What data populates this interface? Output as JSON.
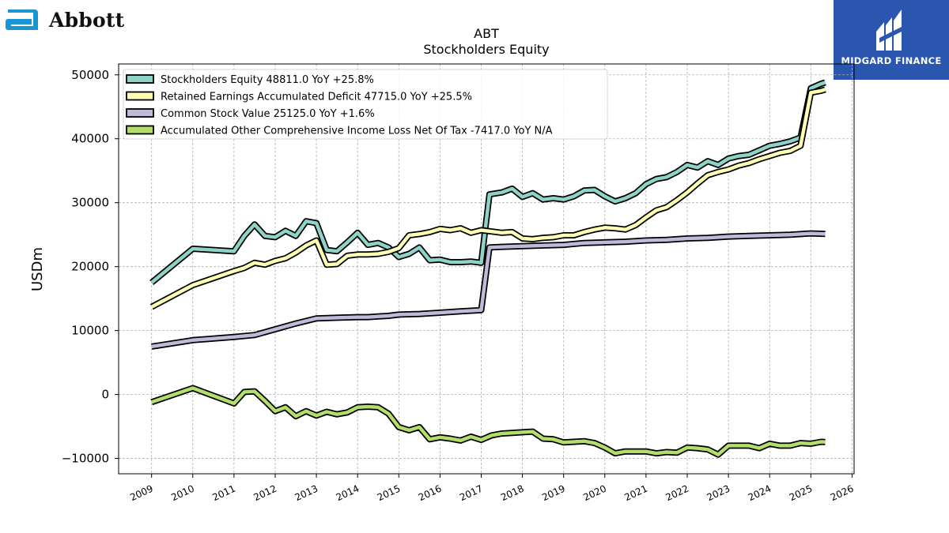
{
  "brand": {
    "company": "Abbott",
    "partner": "MIDGARD FINANCE"
  },
  "colors": {
    "background": "#ffffff",
    "grid": "#b0b0b0",
    "abbott_blue": "#1a95d3",
    "midgard_blue": "#2a56b0",
    "series_outline": "#000000"
  },
  "chart_data": {
    "type": "line",
    "title": "ABT",
    "subtitle": "Stockholders  Equity",
    "xlabel": "",
    "ylabel": "USDm",
    "xlim": [
      2008.2,
      2026.05
    ],
    "ylim": [
      -12400,
      51700
    ],
    "xticks": [
      2009,
      2010,
      2011,
      2012,
      2013,
      2014,
      2015,
      2016,
      2017,
      2018,
      2019,
      2020,
      2021,
      2022,
      2023,
      2024,
      2025,
      2026
    ],
    "xtick_labels": [
      "2009",
      "2010",
      "2011",
      "2012",
      "2013",
      "2014",
      "2015",
      "2016",
      "2017",
      "2018",
      "2019",
      "2020",
      "2021",
      "2022",
      "2023",
      "2024",
      "2025",
      "2026"
    ],
    "yticks": [
      -10000,
      0,
      10000,
      20000,
      30000,
      40000,
      50000
    ],
    "ytick_labels": [
      "−10000",
      "0",
      "10000",
      "20000",
      "30000",
      "40000",
      "50000"
    ],
    "grid": true,
    "legend_position": "top-left",
    "series": [
      {
        "name": "Stockholders Equity  48811.0 YoY +25.8%",
        "color": "#8dd3c7",
        "points": [
          [
            2009.0,
            17500
          ],
          [
            2010.0,
            22800
          ],
          [
            2011.0,
            22400
          ],
          [
            2011.25,
            24800
          ],
          [
            2011.5,
            26600
          ],
          [
            2011.75,
            24800
          ],
          [
            2012.0,
            24600
          ],
          [
            2012.25,
            25600
          ],
          [
            2012.5,
            24800
          ],
          [
            2012.75,
            27100
          ],
          [
            2013.0,
            26800
          ],
          [
            2013.25,
            22600
          ],
          [
            2013.5,
            22400
          ],
          [
            2013.75,
            23800
          ],
          [
            2014.0,
            25300
          ],
          [
            2014.25,
            23400
          ],
          [
            2014.5,
            23700
          ],
          [
            2014.75,
            23000
          ],
          [
            2015.0,
            21500
          ],
          [
            2015.25,
            22000
          ],
          [
            2015.5,
            23000
          ],
          [
            2015.75,
            21000
          ],
          [
            2016.0,
            21100
          ],
          [
            2016.25,
            20700
          ],
          [
            2016.5,
            20700
          ],
          [
            2016.75,
            20800
          ],
          [
            2017.0,
            20600
          ],
          [
            2017.2,
            31300
          ],
          [
            2017.5,
            31600
          ],
          [
            2017.75,
            32200
          ],
          [
            2018.0,
            30900
          ],
          [
            2018.25,
            31500
          ],
          [
            2018.5,
            30500
          ],
          [
            2018.75,
            30700
          ],
          [
            2019.0,
            30500
          ],
          [
            2019.25,
            31000
          ],
          [
            2019.5,
            31900
          ],
          [
            2019.75,
            32000
          ],
          [
            2020.0,
            31000
          ],
          [
            2020.25,
            30200
          ],
          [
            2020.5,
            30700
          ],
          [
            2020.75,
            31500
          ],
          [
            2021.0,
            32900
          ],
          [
            2021.25,
            33700
          ],
          [
            2021.5,
            34000
          ],
          [
            2021.75,
            34800
          ],
          [
            2022.0,
            35900
          ],
          [
            2022.25,
            35500
          ],
          [
            2022.5,
            36500
          ],
          [
            2022.75,
            35900
          ],
          [
            2023.0,
            36900
          ],
          [
            2023.25,
            37300
          ],
          [
            2023.5,
            37500
          ],
          [
            2023.75,
            38200
          ],
          [
            2024.0,
            38900
          ],
          [
            2024.25,
            39200
          ],
          [
            2024.5,
            39600
          ],
          [
            2024.75,
            40200
          ],
          [
            2025.0,
            47900
          ],
          [
            2025.25,
            48600
          ],
          [
            2025.35,
            48811
          ]
        ]
      },
      {
        "name": "Retained Earnings Accumulated Deficit  47715.0 YoY +25.5%",
        "color": "#ffffb3",
        "points": [
          [
            2009.0,
            13700
          ],
          [
            2010.0,
            17100
          ],
          [
            2011.0,
            19300
          ],
          [
            2011.25,
            19800
          ],
          [
            2011.5,
            20600
          ],
          [
            2011.75,
            20300
          ],
          [
            2012.0,
            20900
          ],
          [
            2012.25,
            21300
          ],
          [
            2012.5,
            22200
          ],
          [
            2012.75,
            23300
          ],
          [
            2013.0,
            24100
          ],
          [
            2013.25,
            20300
          ],
          [
            2013.5,
            20400
          ],
          [
            2013.75,
            21700
          ],
          [
            2014.0,
            21900
          ],
          [
            2014.25,
            21900
          ],
          [
            2014.5,
            22000
          ],
          [
            2014.75,
            22300
          ],
          [
            2015.0,
            22900
          ],
          [
            2015.25,
            24900
          ],
          [
            2015.5,
            25100
          ],
          [
            2015.75,
            25400
          ],
          [
            2016.0,
            25900
          ],
          [
            2016.25,
            25700
          ],
          [
            2016.5,
            26000
          ],
          [
            2016.75,
            25300
          ],
          [
            2017.0,
            25700
          ],
          [
            2017.25,
            25500
          ],
          [
            2017.5,
            25300
          ],
          [
            2017.75,
            25400
          ],
          [
            2018.0,
            24400
          ],
          [
            2018.25,
            24300
          ],
          [
            2018.5,
            24500
          ],
          [
            2018.75,
            24600
          ],
          [
            2019.0,
            24900
          ],
          [
            2019.25,
            24900
          ],
          [
            2019.5,
            25400
          ],
          [
            2019.75,
            25800
          ],
          [
            2020.0,
            26100
          ],
          [
            2020.25,
            26000
          ],
          [
            2020.5,
            25800
          ],
          [
            2020.75,
            26500
          ],
          [
            2021.0,
            27700
          ],
          [
            2021.25,
            28800
          ],
          [
            2021.5,
            29300
          ],
          [
            2021.75,
            30400
          ],
          [
            2022.0,
            31600
          ],
          [
            2022.25,
            33000
          ],
          [
            2022.5,
            34300
          ],
          [
            2022.75,
            34800
          ],
          [
            2023.0,
            35200
          ],
          [
            2023.25,
            35800
          ],
          [
            2023.5,
            36200
          ],
          [
            2023.75,
            36800
          ],
          [
            2024.0,
            37300
          ],
          [
            2024.25,
            37800
          ],
          [
            2024.5,
            38100
          ],
          [
            2024.75,
            38900
          ],
          [
            2025.0,
            47200
          ],
          [
            2025.25,
            47500
          ],
          [
            2025.35,
            47715
          ]
        ]
      },
      {
        "name": "Common Stock Value  25125.0 YoY +1.6%",
        "color": "#bebada",
        "points": [
          [
            2009.0,
            7500
          ],
          [
            2010.0,
            8500
          ],
          [
            2011.0,
            9000
          ],
          [
            2011.5,
            9300
          ],
          [
            2012.0,
            10200
          ],
          [
            2012.5,
            11100
          ],
          [
            2013.0,
            11900
          ],
          [
            2013.5,
            12000
          ],
          [
            2014.0,
            12100
          ],
          [
            2014.25,
            12100
          ],
          [
            2014.5,
            12200
          ],
          [
            2014.75,
            12300
          ],
          [
            2015.0,
            12500
          ],
          [
            2015.5,
            12600
          ],
          [
            2016.0,
            12800
          ],
          [
            2016.5,
            13000
          ],
          [
            2017.0,
            13200
          ],
          [
            2017.2,
            23000
          ],
          [
            2017.5,
            23100
          ],
          [
            2018.0,
            23200
          ],
          [
            2018.5,
            23300
          ],
          [
            2019.0,
            23400
          ],
          [
            2019.5,
            23700
          ],
          [
            2020.0,
            23800
          ],
          [
            2020.5,
            23900
          ],
          [
            2021.0,
            24100
          ],
          [
            2021.5,
            24200
          ],
          [
            2022.0,
            24400
          ],
          [
            2022.5,
            24500
          ],
          [
            2023.0,
            24700
          ],
          [
            2023.5,
            24800
          ],
          [
            2024.0,
            24900
          ],
          [
            2024.5,
            25000
          ],
          [
            2025.0,
            25200
          ],
          [
            2025.35,
            25125
          ]
        ]
      },
      {
        "name": "Accumulated Other Comprehensive Income Loss Net Of Tax  -7417.0 YoY N/A",
        "color": "#b3de69",
        "points": [
          [
            2009.0,
            -1200
          ],
          [
            2010.0,
            1000
          ],
          [
            2011.0,
            -1400
          ],
          [
            2011.25,
            400
          ],
          [
            2011.5,
            500
          ],
          [
            2011.75,
            -1000
          ],
          [
            2012.0,
            -2600
          ],
          [
            2012.25,
            -2000
          ],
          [
            2012.5,
            -3400
          ],
          [
            2012.75,
            -2600
          ],
          [
            2013.0,
            -3300
          ],
          [
            2013.25,
            -2700
          ],
          [
            2013.5,
            -3100
          ],
          [
            2013.75,
            -2800
          ],
          [
            2014.0,
            -2000
          ],
          [
            2014.25,
            -1900
          ],
          [
            2014.5,
            -2000
          ],
          [
            2014.75,
            -3000
          ],
          [
            2015.0,
            -5100
          ],
          [
            2015.25,
            -5600
          ],
          [
            2015.5,
            -5100
          ],
          [
            2015.75,
            -7000
          ],
          [
            2016.0,
            -6700
          ],
          [
            2016.25,
            -6900
          ],
          [
            2016.5,
            -7200
          ],
          [
            2016.75,
            -6600
          ],
          [
            2017.0,
            -7100
          ],
          [
            2017.25,
            -6400
          ],
          [
            2017.5,
            -6100
          ],
          [
            2017.75,
            -6000
          ],
          [
            2018.0,
            -5900
          ],
          [
            2018.25,
            -5800
          ],
          [
            2018.5,
            -6900
          ],
          [
            2018.75,
            -7000
          ],
          [
            2019.0,
            -7500
          ],
          [
            2019.25,
            -7400
          ],
          [
            2019.5,
            -7300
          ],
          [
            2019.75,
            -7600
          ],
          [
            2020.0,
            -8300
          ],
          [
            2020.25,
            -9200
          ],
          [
            2020.5,
            -8900
          ],
          [
            2020.75,
            -8900
          ],
          [
            2021.0,
            -8900
          ],
          [
            2021.25,
            -9200
          ],
          [
            2021.5,
            -9000
          ],
          [
            2021.75,
            -9100
          ],
          [
            2022.0,
            -8300
          ],
          [
            2022.25,
            -8400
          ],
          [
            2022.5,
            -8600
          ],
          [
            2022.75,
            -9400
          ],
          [
            2023.0,
            -8000
          ],
          [
            2023.25,
            -8000
          ],
          [
            2023.5,
            -8000
          ],
          [
            2023.75,
            -8400
          ],
          [
            2024.0,
            -7700
          ],
          [
            2024.25,
            -8000
          ],
          [
            2024.5,
            -8000
          ],
          [
            2024.75,
            -7600
          ],
          [
            2025.0,
            -7700
          ],
          [
            2025.25,
            -7400
          ],
          [
            2025.35,
            -7417
          ]
        ]
      }
    ]
  }
}
